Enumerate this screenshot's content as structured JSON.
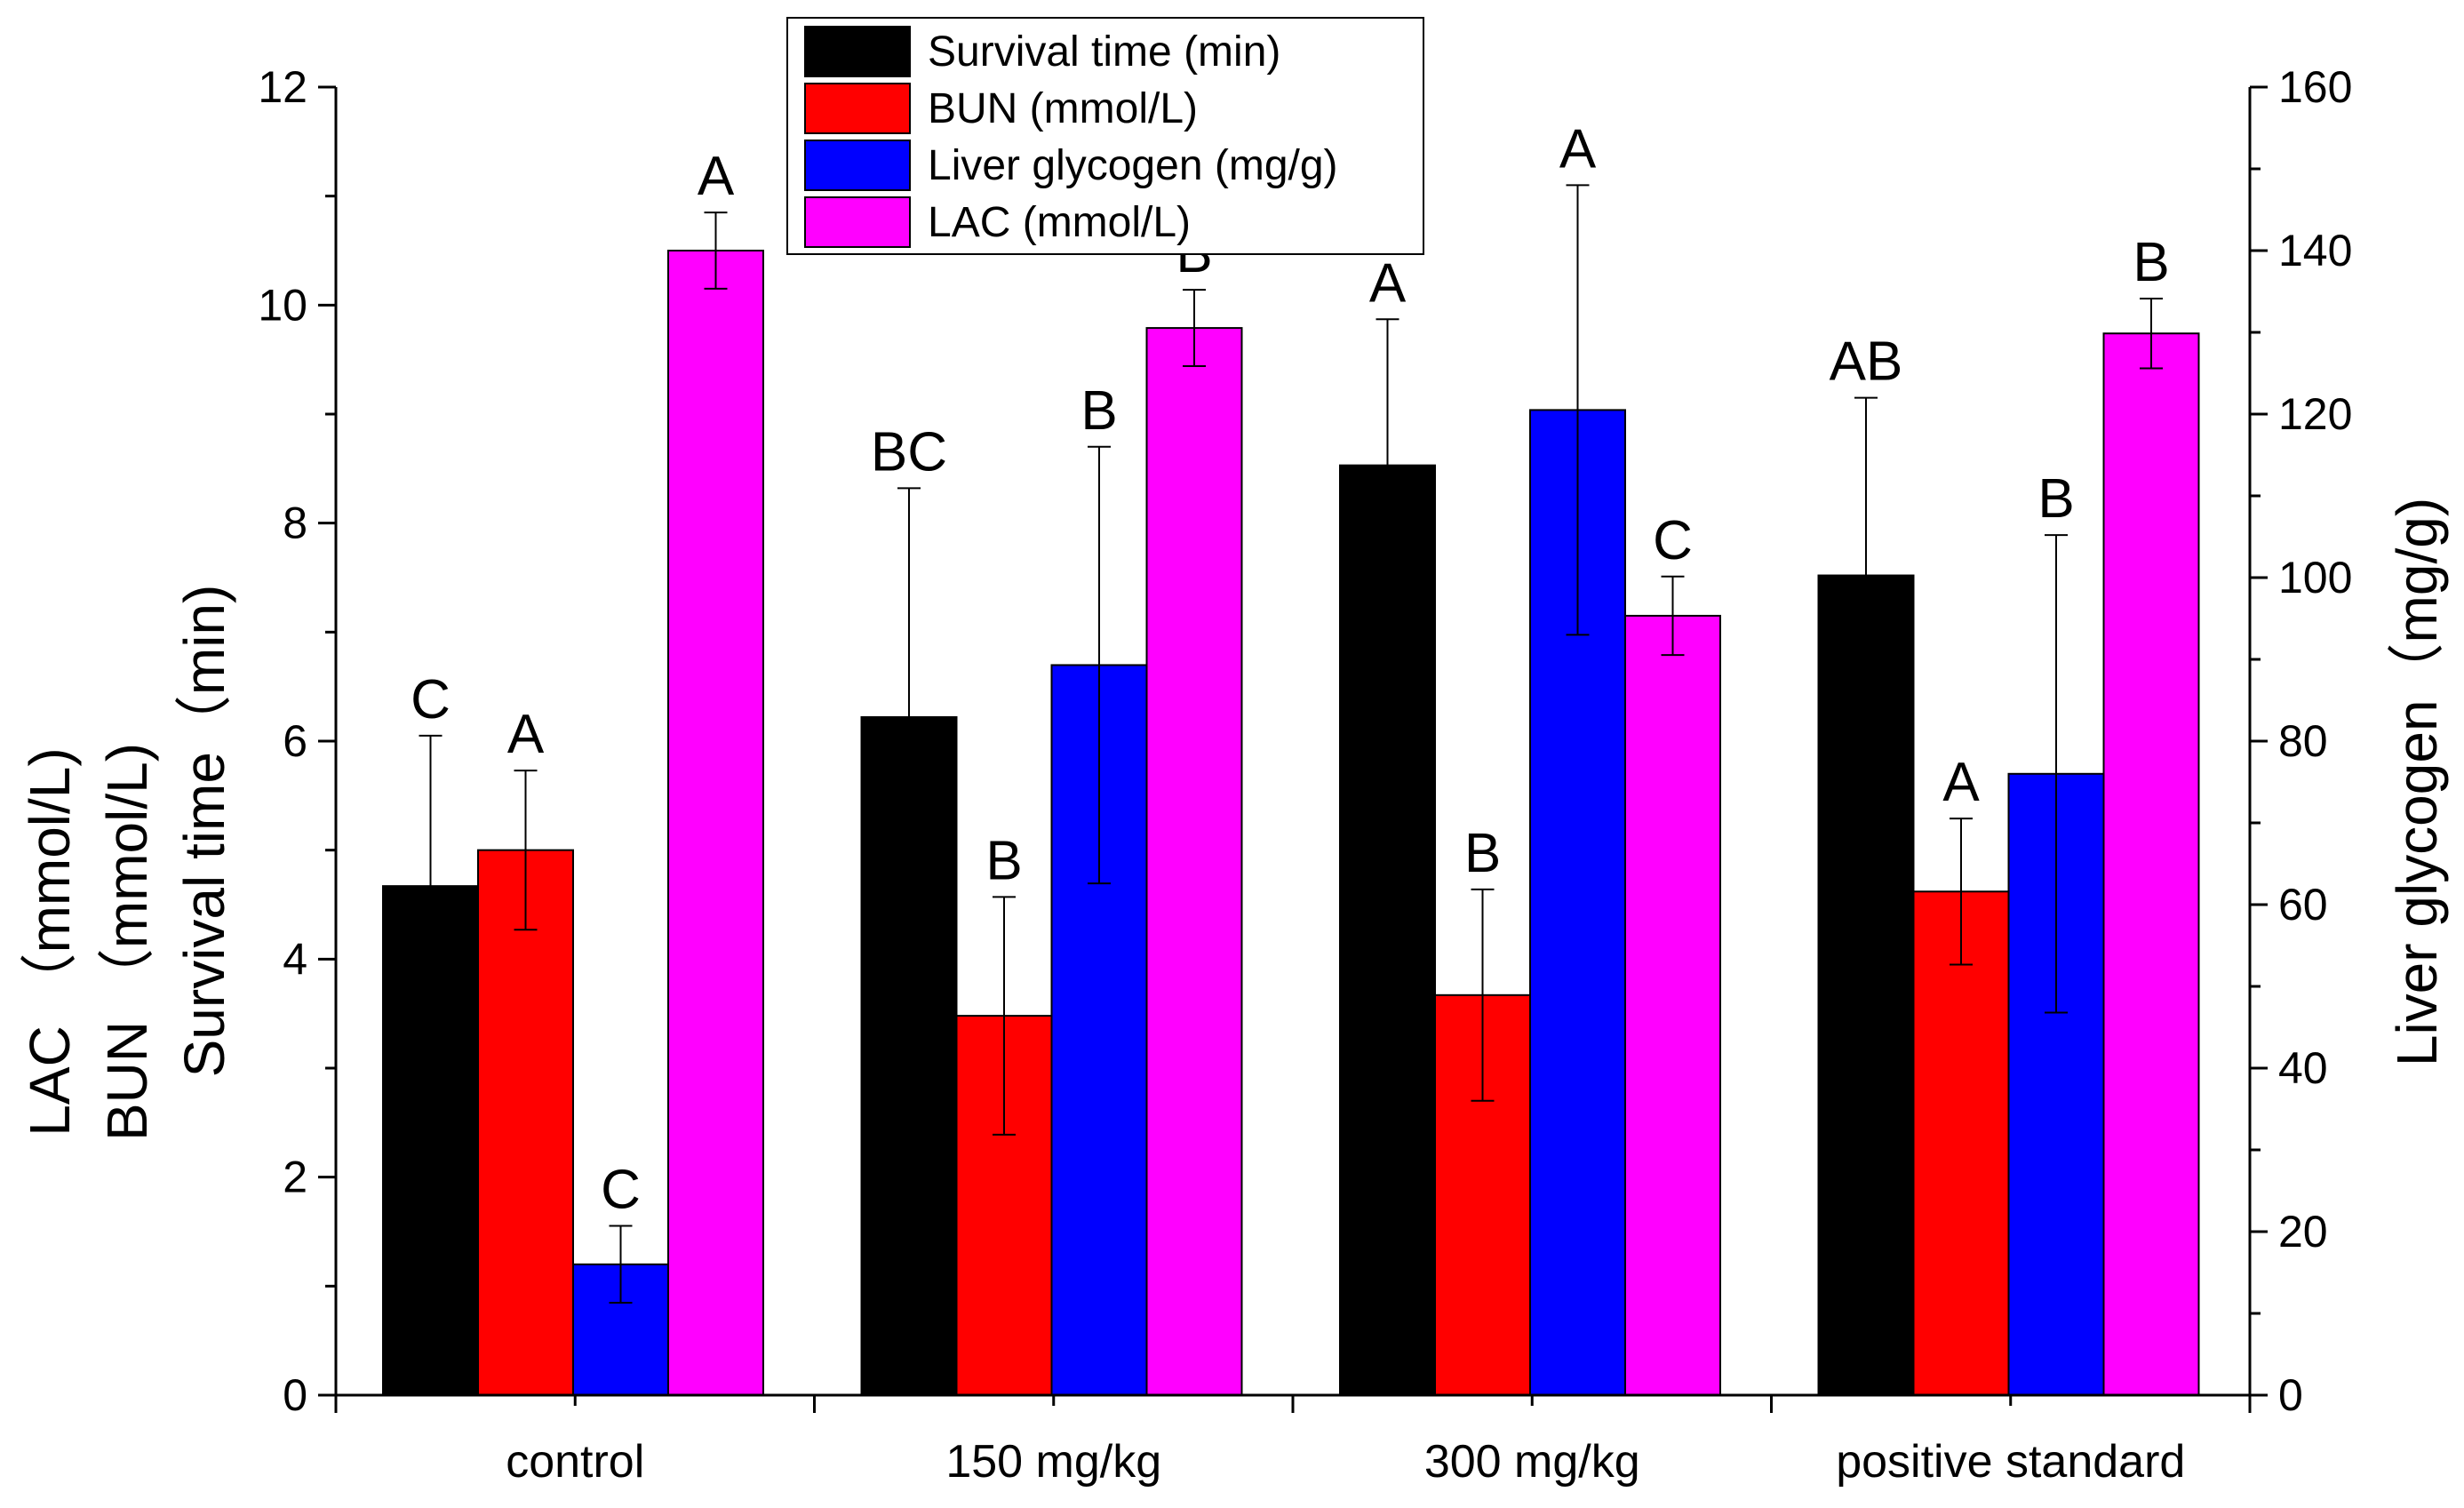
{
  "chart_data": {
    "type": "bar",
    "categories": [
      "control",
      "150 mg/kg",
      "300 mg/kg",
      "positive standard"
    ],
    "left_axis": {
      "title_lines": [
        "LAC （mmol/L)",
        "BUN （mmol/L)",
        "Survival time（min)"
      ],
      "ylim": [
        0,
        12
      ],
      "ticks": [
        "0",
        "2",
        "4",
        "6",
        "8",
        "10",
        "12"
      ]
    },
    "right_axis": {
      "title": "Liver glycogen（mg/g)",
      "ylim": [
        0,
        160
      ],
      "ticks": [
        "0",
        "20",
        "40",
        "60",
        "80",
        "100",
        "120",
        "140",
        "160"
      ]
    },
    "series": [
      {
        "name": "Survival time (min)",
        "color": "#000000",
        "axis": "left",
        "values": [
          4.67,
          6.22,
          8.53,
          7.52
        ],
        "errors": [
          1.38,
          2.1,
          1.34,
          1.63
        ],
        "significance": [
          "C",
          "BC",
          "A",
          "AB"
        ]
      },
      {
        "name": "BUN (mmol/L)",
        "color": "#ff0000",
        "axis": "left",
        "values": [
          5.0,
          3.48,
          3.67,
          4.62
        ],
        "errors": [
          0.73,
          1.09,
          0.97,
          0.67
        ],
        "significance": [
          "A",
          "B",
          "B",
          "A"
        ]
      },
      {
        "name": "Liver glycogen (mg/g)",
        "color": "#0000ff",
        "axis": "right",
        "values": [
          16.0,
          89.3,
          120.5,
          76.0
        ],
        "errors": [
          4.7,
          26.7,
          27.5,
          29.2
        ],
        "significance": [
          "C",
          "B",
          "A",
          "B"
        ]
      },
      {
        "name": "LAC (mmol/L)",
        "color": "#ff00ff",
        "axis": "left",
        "values": [
          10.5,
          9.79,
          7.15,
          9.74
        ],
        "errors": [
          0.35,
          0.35,
          0.36,
          0.32
        ],
        "significance": [
          "A",
          "B",
          "C",
          "B"
        ]
      }
    ],
    "legend_position": "top-center"
  }
}
